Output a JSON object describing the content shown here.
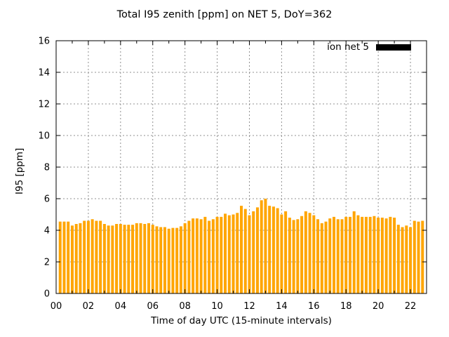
{
  "figure": {
    "title": "Total I95 zenith [ppm] on NET 5, DoY=362",
    "xlabel": "Time of day UTC (15-minute intervals)",
    "ylabel": "I95 [ppm]",
    "legend": {
      "label": "ion net 5",
      "swatch_color": "#000000",
      "position": "top-right"
    }
  },
  "chart_data": {
    "type": "bar",
    "title": "Total I95 zenith [ppm] on NET 5, DoY=362",
    "xlabel": "Time of day UTC (15-minute intervals)",
    "ylabel": "I95 [ppm]",
    "legend_entries": [
      "ion net 5"
    ],
    "bar_color": "#FFA500",
    "grid_color": "#909090",
    "grid_style": "dashed",
    "xlim_hours": [
      0,
      23
    ],
    "ylim": [
      0,
      16
    ],
    "yticks": [
      "0",
      "2",
      "4",
      "6",
      "8",
      "10",
      "12",
      "14",
      "16"
    ],
    "ytick_values": [
      0,
      2,
      4,
      6,
      8,
      10,
      12,
      14,
      16
    ],
    "xtick_labels": [
      "00",
      "02",
      "04",
      "06",
      "08",
      "10",
      "12",
      "14",
      "16",
      "18",
      "20",
      "22"
    ],
    "xtick_hours": [
      0,
      2,
      4,
      6,
      8,
      10,
      12,
      14,
      16,
      18,
      20,
      22
    ],
    "minor_xtick_every_hours": 1,
    "interval_minutes": 15,
    "x_times": [
      "00:15",
      "00:30",
      "00:45",
      "01:00",
      "01:15",
      "01:30",
      "01:45",
      "02:00",
      "02:15",
      "02:30",
      "02:45",
      "03:00",
      "03:15",
      "03:30",
      "03:45",
      "04:00",
      "04:15",
      "04:30",
      "04:45",
      "05:00",
      "05:15",
      "05:30",
      "05:45",
      "06:00",
      "06:15",
      "06:30",
      "06:45",
      "07:00",
      "07:15",
      "07:30",
      "07:45",
      "08:00",
      "08:15",
      "08:30",
      "08:45",
      "09:00",
      "09:15",
      "09:30",
      "09:45",
      "10:00",
      "10:15",
      "10:30",
      "10:45",
      "11:00",
      "11:15",
      "11:30",
      "11:45",
      "12:00",
      "12:15",
      "12:30",
      "12:45",
      "13:00",
      "13:15",
      "13:30",
      "13:45",
      "14:00",
      "14:15",
      "14:30",
      "14:45",
      "15:00",
      "15:15",
      "15:30",
      "15:45",
      "16:00",
      "16:15",
      "16:30",
      "16:45",
      "17:00",
      "17:15",
      "17:30",
      "17:45",
      "18:00",
      "18:15",
      "18:30",
      "18:45",
      "19:00",
      "19:15",
      "19:30",
      "19:45",
      "20:00",
      "20:15",
      "20:30",
      "20:45",
      "21:00",
      "21:15",
      "21:30",
      "21:45",
      "22:00",
      "22:15",
      "22:30",
      "22:45"
    ],
    "values": [
      4.55,
      4.55,
      4.55,
      4.3,
      4.4,
      4.45,
      4.6,
      4.6,
      4.7,
      4.6,
      4.6,
      4.4,
      4.3,
      4.3,
      4.4,
      4.4,
      4.35,
      4.35,
      4.35,
      4.45,
      4.45,
      4.4,
      4.45,
      4.35,
      4.25,
      4.2,
      4.2,
      4.1,
      4.15,
      4.15,
      4.25,
      4.45,
      4.6,
      4.75,
      4.75,
      4.7,
      4.85,
      4.6,
      4.7,
      4.85,
      4.85,
      5.05,
      4.95,
      5.0,
      5.1,
      5.55,
      5.35,
      4.95,
      5.2,
      5.45,
      5.9,
      6.0,
      5.55,
      5.5,
      5.4,
      5.0,
      5.2,
      4.8,
      4.65,
      4.7,
      4.9,
      5.2,
      5.1,
      4.95,
      4.7,
      4.45,
      4.55,
      4.75,
      4.85,
      4.7,
      4.7,
      4.85,
      4.85,
      5.2,
      4.95,
      4.85,
      4.85,
      4.85,
      4.9,
      4.8,
      4.8,
      4.75,
      4.85,
      4.8,
      4.35,
      4.2,
      4.3,
      4.2,
      4.6,
      4.55,
      4.6
    ]
  }
}
